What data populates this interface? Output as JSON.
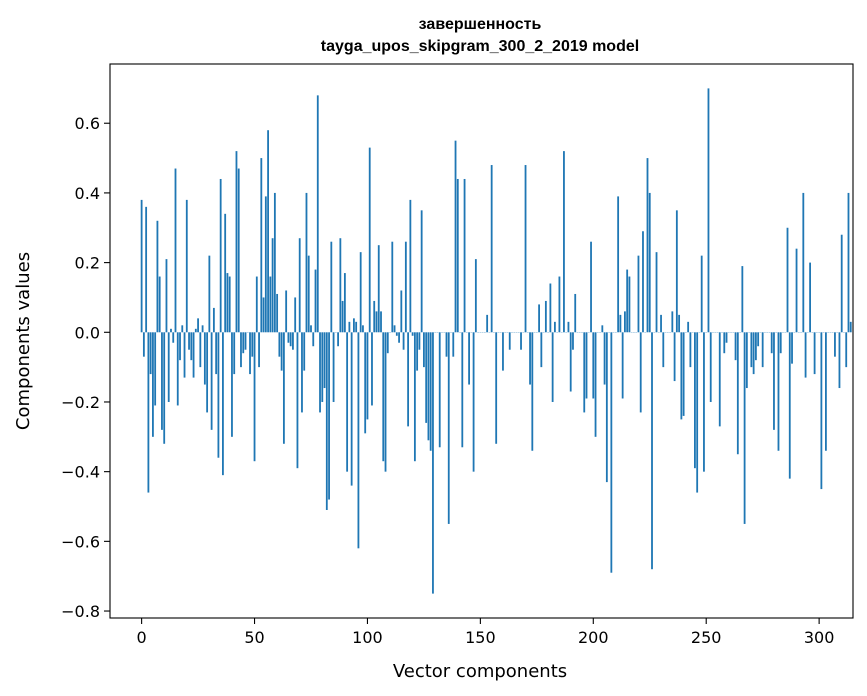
{
  "chart_data": {
    "type": "bar",
    "title_line1": "завершенность",
    "title_line2": "tayga_upos_skipgram_300_2_2019 model",
    "xlabel": "Vector components",
    "ylabel": "Components values",
    "xlim": [
      -14,
      315
    ],
    "ylim": [
      -0.82,
      0.77
    ],
    "xticks": [
      0,
      50,
      100,
      150,
      200,
      250,
      300
    ],
    "xtick_labels": [
      "0",
      "50",
      "100",
      "150",
      "200",
      "250",
      "300"
    ],
    "yticks": [
      -0.8,
      -0.6,
      -0.4,
      -0.2,
      0.0,
      0.2,
      0.4,
      0.6
    ],
    "ytick_labels": [
      "−0.8",
      "−0.6",
      "−0.4",
      "−0.2",
      "0.0",
      "0.2",
      "0.4",
      "0.6"
    ],
    "bar_color": "#1f77b4",
    "values": [
      0.38,
      -0.07,
      0.36,
      -0.46,
      -0.12,
      -0.3,
      -0.21,
      0.32,
      0.16,
      -0.28,
      -0.32,
      0.21,
      -0.2,
      0.01,
      -0.03,
      0.47,
      -0.21,
      -0.08,
      0.02,
      -0.13,
      0.38,
      -0.05,
      -0.08,
      -0.13,
      0.01,
      0.04,
      -0.1,
      0.02,
      -0.15,
      -0.23,
      0.22,
      -0.28,
      0.07,
      -0.12,
      -0.36,
      0.44,
      -0.41,
      0.34,
      0.17,
      0.16,
      -0.3,
      -0.12,
      0.52,
      0.47,
      -0.1,
      -0.06,
      -0.05,
      0.0,
      -0.12,
      -0.07,
      -0.37,
      0.16,
      -0.1,
      0.5,
      0.1,
      0.39,
      0.58,
      0.16,
      0.27,
      0.4,
      0.11,
      -0.07,
      -0.11,
      -0.32,
      0.12,
      -0.03,
      -0.04,
      -0.05,
      0.1,
      -0.39,
      0.27,
      -0.23,
      -0.11,
      0.4,
      0.22,
      0.02,
      -0.04,
      0.18,
      0.68,
      -0.23,
      -0.2,
      -0.16,
      -0.51,
      -0.48,
      0.26,
      -0.2,
      0.0,
      -0.04,
      0.27,
      0.09,
      0.17,
      -0.4,
      0.03,
      -0.44,
      0.04,
      0.03,
      -0.62,
      0.23,
      0.02,
      -0.29,
      -0.25,
      0.53,
      -0.21,
      0.09,
      0.06,
      0.25,
      0.06,
      -0.37,
      -0.4,
      -0.06,
      0.0,
      0.26,
      0.02,
      -0.01,
      -0.03,
      0.12,
      -0.05,
      0.26,
      -0.27,
      0.38,
      -0.01,
      -0.37,
      -0.11,
      -0.05,
      0.35,
      -0.1,
      -0.26,
      -0.31,
      -0.34,
      -0.75,
      0.0,
      0.0,
      -0.33,
      0.0,
      0.0,
      -0.07,
      -0.55,
      0.0,
      -0.07,
      0.55,
      0.44,
      0.0,
      -0.33,
      0.44,
      0.0,
      -0.15,
      0.0,
      -0.4,
      0.21,
      0.0,
      0.0,
      0.0,
      0.0,
      0.05,
      0.0,
      0.48,
      0.0,
      -0.32,
      0.0,
      0.0,
      -0.11,
      0.0,
      0.0,
      -0.05,
      0.0,
      0.0,
      0.0,
      0.0,
      -0.05,
      0.0,
      0.48,
      0.0,
      -0.15,
      -0.34,
      0.0,
      0.0,
      0.08,
      -0.1,
      0.0,
      0.09,
      0.0,
      0.14,
      -0.2,
      0.03,
      0.0,
      0.16,
      0.0,
      0.52,
      0.0,
      0.03,
      -0.17,
      -0.05,
      0.11,
      0.0,
      0.0,
      0.0,
      -0.23,
      -0.19,
      0.0,
      0.26,
      -0.19,
      -0.3,
      0.0,
      0.0,
      0.02,
      -0.15,
      -0.43,
      0.0,
      -0.69,
      0.0,
      0.0,
      0.39,
      0.05,
      -0.19,
      0.06,
      0.18,
      0.16,
      0.0,
      0.0,
      0.0,
      0.22,
      -0.23,
      0.29,
      0.0,
      0.5,
      0.4,
      -0.68,
      0.0,
      0.23,
      0.0,
      0.05,
      -0.1,
      0.0,
      0.0,
      0.0,
      0.06,
      -0.14,
      0.35,
      0.05,
      -0.25,
      -0.24,
      0.0,
      0.03,
      -0.1,
      0.0,
      -0.39,
      -0.46,
      0.0,
      0.22,
      -0.4,
      0.0,
      0.7,
      -0.2,
      0.0,
      0.0,
      0.0,
      -0.27,
      0.0,
      -0.06,
      -0.03,
      0.0,
      0.0,
      0.0,
      -0.08,
      -0.35,
      0.0,
      0.19,
      -0.55,
      -0.16,
      0.0,
      -0.1,
      -0.12,
      -0.08,
      -0.04,
      0.0,
      -0.1,
      0.0,
      0.0,
      0.0,
      -0.06,
      -0.28,
      0.0,
      -0.34,
      -0.06,
      0.0,
      0.0,
      0.3,
      -0.42,
      -0.09,
      0.0,
      0.24,
      0.0,
      0.0,
      0.4,
      -0.13,
      0.0,
      0.2,
      0.0,
      -0.12,
      0.0,
      0.0,
      -0.45,
      0.0,
      -0.34,
      0.0,
      0.0,
      0.0,
      -0.07,
      0.0,
      -0.16,
      0.28,
      0.0,
      -0.1,
      0.4,
      0.03
    ]
  }
}
